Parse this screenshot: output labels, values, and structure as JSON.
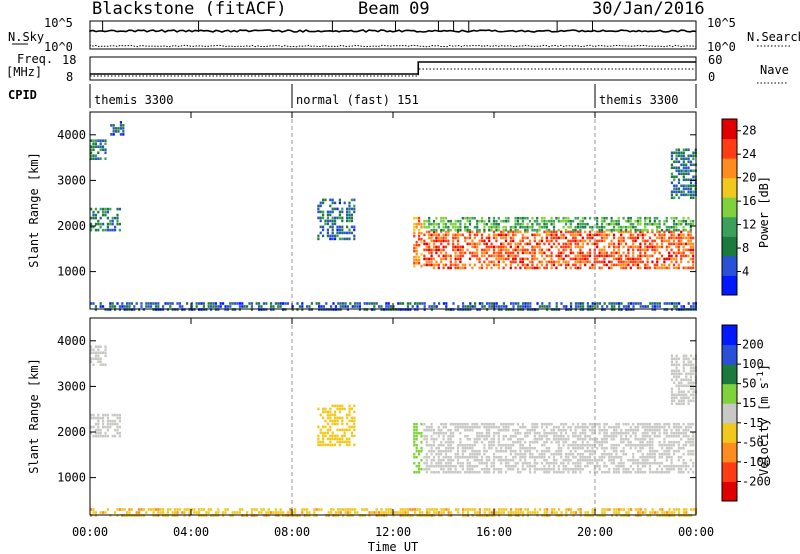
{
  "header": {
    "radar": "Blackstone (fitACF)",
    "beam": "Beam 09",
    "date": "30/Jan/2016"
  },
  "panels": {
    "nsky_label": "N.Sky",
    "nsearch_label": "N.Search",
    "freq_label": "Freq.",
    "freq_unit": "[MHz]",
    "nave_label": "Nave",
    "cpid_label": "CPID",
    "noise_ticks": [
      "10^5",
      "10^0"
    ],
    "freq_ticks": [
      "18",
      "8"
    ],
    "nave_ticks": [
      "60",
      "0"
    ],
    "cpid_segments": [
      {
        "label": "themis 3300",
        "start_h": 0,
        "end_h": 8
      },
      {
        "label": "normal (fast) 151",
        "start_h": 8,
        "end_h": 20
      },
      {
        "label": "themis 3300",
        "start_h": 20,
        "end_h": 24
      }
    ]
  },
  "colors": {
    "power_scale": [
      "#0019ff",
      "#2a4fd8",
      "#1c7a3c",
      "#3aa05a",
      "#7fd23c",
      "#f0c81e",
      "#ff8c1e",
      "#ff3c14",
      "#e00000"
    ],
    "velocity_scale": [
      "#e00000",
      "#ff3c14",
      "#ff8c1e",
      "#f0c81e",
      "#c8c8c4",
      "#7fd23c",
      "#1c7a3c",
      "#2a4fd8",
      "#0019ff"
    ]
  },
  "chart_data": [
    {
      "type": "heatmap",
      "panel": "power",
      "xlabel": "Time UT",
      "ylabel": "Slant Range [km]",
      "colorbar_label": "Power [dB]",
      "xlim": [
        0,
        24
      ],
      "ylim": [
        180,
        4500
      ],
      "x_ticks": [
        "00:00",
        "04:00",
        "08:00",
        "12:00",
        "16:00",
        "20:00",
        "00:00"
      ],
      "y_ticks": [
        1000,
        2000,
        3000,
        4000
      ],
      "colorbar_ticks": [
        4,
        8,
        12,
        16,
        20,
        24,
        28
      ],
      "colorbar_range": [
        0,
        30
      ],
      "regions": [
        {
          "t0": 0.0,
          "t1": 1.2,
          "r0": 1900,
          "r1": 2400,
          "value": 9
        },
        {
          "t0": 0.0,
          "t1": 0.6,
          "r0": 3500,
          "r1": 3900,
          "value": 8
        },
        {
          "t0": 0.8,
          "t1": 1.3,
          "r0": 4000,
          "r1": 4300,
          "value": 6
        },
        {
          "t0": 9.0,
          "t1": 10.5,
          "r0": 1700,
          "r1": 2600,
          "value": 7
        },
        {
          "t0": 12.8,
          "t1": 13.1,
          "r0": 1100,
          "r1": 2200,
          "value": 22
        },
        {
          "t0": 13.2,
          "t1": 23.9,
          "r0": 1100,
          "r1": 1900,
          "value": 24
        },
        {
          "t0": 13.2,
          "t1": 23.9,
          "r0": 1900,
          "r1": 2200,
          "value": 12
        },
        {
          "t0": 23.0,
          "t1": 24.0,
          "r0": 2600,
          "r1": 3700,
          "value": 8
        },
        {
          "t0": 0.0,
          "t1": 24.0,
          "r0": 180,
          "r1": 330,
          "value": 6
        }
      ]
    },
    {
      "type": "heatmap",
      "panel": "velocity",
      "xlabel": "Time UT",
      "ylabel": "Slant Range [km]",
      "colorbar_label": "Velocity [m s^-1]",
      "xlim": [
        0,
        24
      ],
      "ylim": [
        180,
        4500
      ],
      "x_ticks": [
        "00:00",
        "04:00",
        "08:00",
        "12:00",
        "16:00",
        "20:00",
        "00:00"
      ],
      "y_ticks": [
        1000,
        2000,
        3000,
        4000
      ],
      "colorbar_ticks": [
        200,
        100,
        50,
        15,
        -15,
        -50,
        -100,
        -200
      ],
      "regions": [
        {
          "t0": 0.0,
          "t1": 1.2,
          "r0": 1900,
          "r1": 2400,
          "value": 0
        },
        {
          "t0": 0.0,
          "t1": 0.6,
          "r0": 3500,
          "r1": 3900,
          "value": 0
        },
        {
          "t0": 9.0,
          "t1": 10.5,
          "r0": 1700,
          "r1": 2600,
          "value": -30
        },
        {
          "t0": 12.8,
          "t1": 13.1,
          "r0": 1100,
          "r1": 2200,
          "value": 30
        },
        {
          "t0": 13.2,
          "t1": 23.9,
          "r0": 1100,
          "r1": 2200,
          "value": 0
        },
        {
          "t0": 23.0,
          "t1": 24.0,
          "r0": 2600,
          "r1": 3700,
          "value": 0
        },
        {
          "t0": 0.0,
          "t1": 24.0,
          "r0": 180,
          "r1": 330,
          "value": -40
        }
      ]
    }
  ]
}
